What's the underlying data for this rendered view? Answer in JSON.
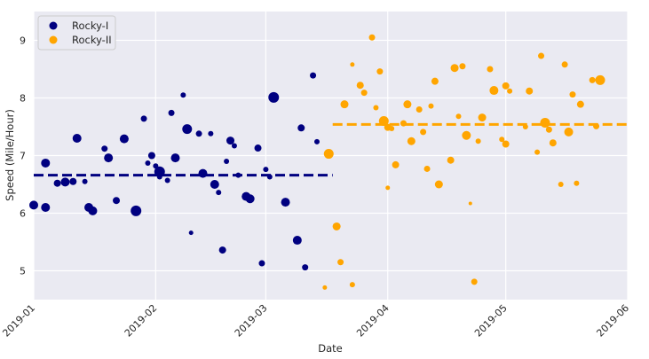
{
  "chart_data": {
    "type": "scatter",
    "title": "",
    "xlabel": "Date",
    "ylabel": "Speed (Mile/Hour)",
    "xlim": [
      "2019-01-01",
      "2019-06-01"
    ],
    "ylim": [
      4.5,
      9.5
    ],
    "x_ticks": [
      "2019-01",
      "2019-02",
      "2019-03",
      "2019-04",
      "2019-05",
      "2019-06"
    ],
    "y_ticks": [
      5,
      6,
      7,
      8,
      9
    ],
    "grid": true,
    "legend_position": "upper left",
    "style": {
      "background": "#eaeaf2",
      "grid_color": "#ffffff"
    },
    "series": [
      {
        "name": "Rocky-I",
        "color": "#000080",
        "mean": 6.66,
        "mean_range": [
          "2019-01-01",
          "2019-03-18"
        ],
        "points": [
          {
            "x": "2019-01-01",
            "y": 6.14,
            "s": 5
          },
          {
            "x": "2019-01-04",
            "y": 6.87,
            "s": 5
          },
          {
            "x": "2019-01-04",
            "y": 6.1,
            "s": 5
          },
          {
            "x": "2019-01-07",
            "y": 6.52,
            "s": 4
          },
          {
            "x": "2019-01-09",
            "y": 6.54,
            "s": 5
          },
          {
            "x": "2019-01-11",
            "y": 6.55,
            "s": 4
          },
          {
            "x": "2019-01-12",
            "y": 7.3,
            "s": 5
          },
          {
            "x": "2019-01-14",
            "y": 6.55,
            "s": 3
          },
          {
            "x": "2019-01-15",
            "y": 6.1,
            "s": 5
          },
          {
            "x": "2019-01-16",
            "y": 6.04,
            "s": 5
          },
          {
            "x": "2019-01-19",
            "y": 7.12,
            "s": 3.5
          },
          {
            "x": "2019-01-20",
            "y": 6.96,
            "s": 5
          },
          {
            "x": "2019-01-22",
            "y": 6.22,
            "s": 4
          },
          {
            "x": "2019-01-24",
            "y": 7.29,
            "s": 5
          },
          {
            "x": "2019-01-27",
            "y": 6.04,
            "s": 6
          },
          {
            "x": "2019-01-29",
            "y": 7.64,
            "s": 3.5
          },
          {
            "x": "2019-01-30",
            "y": 6.87,
            "s": 3
          },
          {
            "x": "2019-01-31",
            "y": 7.0,
            "s": 4
          },
          {
            "x": "2019-02-01",
            "y": 6.82,
            "s": 3
          },
          {
            "x": "2019-02-02",
            "y": 6.72,
            "s": 6
          },
          {
            "x": "2019-02-02",
            "y": 6.63,
            "s": 3
          },
          {
            "x": "2019-02-04",
            "y": 6.57,
            "s": 3
          },
          {
            "x": "2019-02-05",
            "y": 7.74,
            "s": 3.5
          },
          {
            "x": "2019-02-06",
            "y": 6.96,
            "s": 5
          },
          {
            "x": "2019-02-08",
            "y": 8.05,
            "s": 3
          },
          {
            "x": "2019-02-09",
            "y": 7.46,
            "s": 5.5
          },
          {
            "x": "2019-02-10",
            "y": 5.66,
            "s": 2.5
          },
          {
            "x": "2019-02-12",
            "y": 7.38,
            "s": 3.5
          },
          {
            "x": "2019-02-13",
            "y": 6.69,
            "s": 5
          },
          {
            "x": "2019-02-15",
            "y": 7.38,
            "s": 3
          },
          {
            "x": "2019-02-16",
            "y": 6.5,
            "s": 5
          },
          {
            "x": "2019-02-17",
            "y": 6.36,
            "s": 3
          },
          {
            "x": "2019-02-18",
            "y": 5.36,
            "s": 4
          },
          {
            "x": "2019-02-19",
            "y": 6.9,
            "s": 3
          },
          {
            "x": "2019-02-20",
            "y": 7.26,
            "s": 4.5
          },
          {
            "x": "2019-02-21",
            "y": 7.17,
            "s": 3
          },
          {
            "x": "2019-02-22",
            "y": 6.66,
            "s": 3
          },
          {
            "x": "2019-02-24",
            "y": 6.29,
            "s": 5
          },
          {
            "x": "2019-02-25",
            "y": 6.25,
            "s": 5
          },
          {
            "x": "2019-02-27",
            "y": 7.13,
            "s": 4
          },
          {
            "x": "2019-02-28",
            "y": 5.13,
            "s": 3.5
          },
          {
            "x": "2019-03-01",
            "y": 6.76,
            "s": 3
          },
          {
            "x": "2019-03-02",
            "y": 6.63,
            "s": 3
          },
          {
            "x": "2019-03-03",
            "y": 8.01,
            "s": 6
          },
          {
            "x": "2019-03-06",
            "y": 6.19,
            "s": 5
          },
          {
            "x": "2019-03-09",
            "y": 5.53,
            "s": 5
          },
          {
            "x": "2019-03-10",
            "y": 7.48,
            "s": 4
          },
          {
            "x": "2019-03-11",
            "y": 5.06,
            "s": 3.5
          },
          {
            "x": "2019-03-13",
            "y": 8.39,
            "s": 3.5
          },
          {
            "x": "2019-03-14",
            "y": 7.24,
            "s": 3
          }
        ]
      },
      {
        "name": "Rocky-II",
        "color": "#ffa500",
        "mean": 7.54,
        "mean_range": [
          "2019-03-18",
          "2019-06-01"
        ],
        "points": [
          {
            "x": "2019-03-16",
            "y": 4.71,
            "s": 2.5
          },
          {
            "x": "2019-03-17",
            "y": 7.03,
            "s": 5.5
          },
          {
            "x": "2019-03-19",
            "y": 5.77,
            "s": 4.5
          },
          {
            "x": "2019-03-20",
            "y": 5.15,
            "s": 3.5
          },
          {
            "x": "2019-03-21",
            "y": 7.89,
            "s": 4.5
          },
          {
            "x": "2019-03-23",
            "y": 4.76,
            "s": 3
          },
          {
            "x": "2019-03-23",
            "y": 8.58,
            "s": 2.5
          },
          {
            "x": "2019-03-25",
            "y": 8.22,
            "s": 4
          },
          {
            "x": "2019-03-26",
            "y": 8.09,
            "s": 3.5
          },
          {
            "x": "2019-03-28",
            "y": 9.05,
            "s": 3.5
          },
          {
            "x": "2019-03-29",
            "y": 7.83,
            "s": 3
          },
          {
            "x": "2019-03-30",
            "y": 8.46,
            "s": 3.5
          },
          {
            "x": "2019-03-31",
            "y": 7.6,
            "s": 5.5
          },
          {
            "x": "2019-04-01",
            "y": 7.49,
            "s": 4
          },
          {
            "x": "2019-04-01",
            "y": 6.44,
            "s": 2.5
          },
          {
            "x": "2019-04-02",
            "y": 7.47,
            "s": 3
          },
          {
            "x": "2019-04-03",
            "y": 6.84,
            "s": 4
          },
          {
            "x": "2019-04-05",
            "y": 7.56,
            "s": 3.5
          },
          {
            "x": "2019-04-06",
            "y": 7.89,
            "s": 4.5
          },
          {
            "x": "2019-04-07",
            "y": 7.25,
            "s": 4.5
          },
          {
            "x": "2019-04-09",
            "y": 7.8,
            "s": 3.5
          },
          {
            "x": "2019-04-10",
            "y": 7.41,
            "s": 3.5
          },
          {
            "x": "2019-04-11",
            "y": 6.77,
            "s": 3.5
          },
          {
            "x": "2019-04-12",
            "y": 7.86,
            "s": 3
          },
          {
            "x": "2019-04-13",
            "y": 8.29,
            "s": 4
          },
          {
            "x": "2019-04-14",
            "y": 6.5,
            "s": 4.5
          },
          {
            "x": "2019-04-17",
            "y": 6.92,
            "s": 4
          },
          {
            "x": "2019-04-18",
            "y": 8.52,
            "s": 4.5
          },
          {
            "x": "2019-04-19",
            "y": 7.68,
            "s": 3
          },
          {
            "x": "2019-04-20",
            "y": 8.55,
            "s": 3.5
          },
          {
            "x": "2019-04-21",
            "y": 7.35,
            "s": 5
          },
          {
            "x": "2019-04-22",
            "y": 6.17,
            "s": 2
          },
          {
            "x": "2019-04-23",
            "y": 4.81,
            "s": 3.5
          },
          {
            "x": "2019-04-24",
            "y": 7.25,
            "s": 3
          },
          {
            "x": "2019-04-25",
            "y": 7.66,
            "s": 4.5
          },
          {
            "x": "2019-04-27",
            "y": 8.5,
            "s": 3.5
          },
          {
            "x": "2019-04-28",
            "y": 8.13,
            "s": 5
          },
          {
            "x": "2019-04-30",
            "y": 7.28,
            "s": 3
          },
          {
            "x": "2019-05-01",
            "y": 8.21,
            "s": 4
          },
          {
            "x": "2019-05-01",
            "y": 7.2,
            "s": 4
          },
          {
            "x": "2019-05-02",
            "y": 8.12,
            "s": 3
          },
          {
            "x": "2019-05-06",
            "y": 7.5,
            "s": 3
          },
          {
            "x": "2019-05-07",
            "y": 8.12,
            "s": 4
          },
          {
            "x": "2019-05-09",
            "y": 7.06,
            "s": 3
          },
          {
            "x": "2019-05-10",
            "y": 8.73,
            "s": 3.5
          },
          {
            "x": "2019-05-11",
            "y": 7.57,
            "s": 5.5
          },
          {
            "x": "2019-05-12",
            "y": 7.45,
            "s": 3.5
          },
          {
            "x": "2019-05-13",
            "y": 7.22,
            "s": 4
          },
          {
            "x": "2019-05-15",
            "y": 6.5,
            "s": 3
          },
          {
            "x": "2019-05-16",
            "y": 8.58,
            "s": 3.5
          },
          {
            "x": "2019-05-17",
            "y": 7.41,
            "s": 5
          },
          {
            "x": "2019-05-18",
            "y": 8.06,
            "s": 3.5
          },
          {
            "x": "2019-05-19",
            "y": 6.52,
            "s": 3
          },
          {
            "x": "2019-05-20",
            "y": 7.89,
            "s": 4
          },
          {
            "x": "2019-05-23",
            "y": 8.31,
            "s": 3.5
          },
          {
            "x": "2019-05-24",
            "y": 7.51,
            "s": 3.5
          },
          {
            "x": "2019-05-25",
            "y": 8.31,
            "s": 5.5
          }
        ]
      }
    ]
  },
  "legend": {
    "items": [
      {
        "label": "Rocky-I",
        "color": "#000080"
      },
      {
        "label": "Rocky-II",
        "color": "#ffa500"
      }
    ]
  }
}
